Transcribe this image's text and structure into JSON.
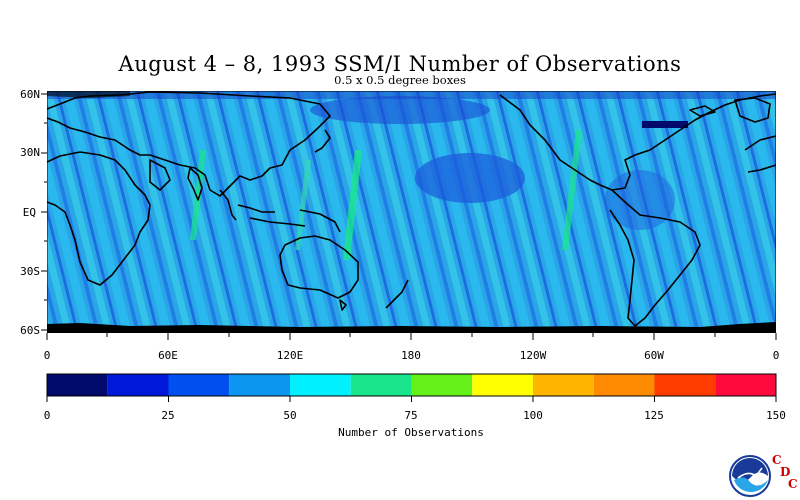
{
  "title": "August 4 – 8, 1993 SSM/I Number of Observations",
  "subtitle": "0.5 x 0.5 degree boxes",
  "map": {
    "lat_labels": [
      "60N",
      "30N",
      "EQ",
      "30S",
      "60S"
    ],
    "lon_labels": [
      "0",
      "60E",
      "120E",
      "180",
      "120W",
      "60W",
      "0"
    ],
    "lat_range": [
      -60,
      60
    ],
    "lon_range": [
      0,
      360
    ],
    "background_color": "#2aa6e8"
  },
  "colorbar": {
    "label": "Number of Observations",
    "tick_labels": [
      "0",
      "25",
      "50",
      "75",
      "100",
      "125",
      "150"
    ],
    "range": [
      0,
      150
    ],
    "colors": [
      "#000a6b",
      "#0018d8",
      "#0050f0",
      "#0c96f0",
      "#00f0ff",
      "#19e68c",
      "#66f01a",
      "#ffff00",
      "#ffb400",
      "#ff8c00",
      "#ff3c00",
      "#ff0a3c"
    ]
  },
  "logo": {
    "agency": "NOAA",
    "letters": [
      "C",
      "D",
      "C"
    ],
    "letter_color": "#cc0000"
  }
}
